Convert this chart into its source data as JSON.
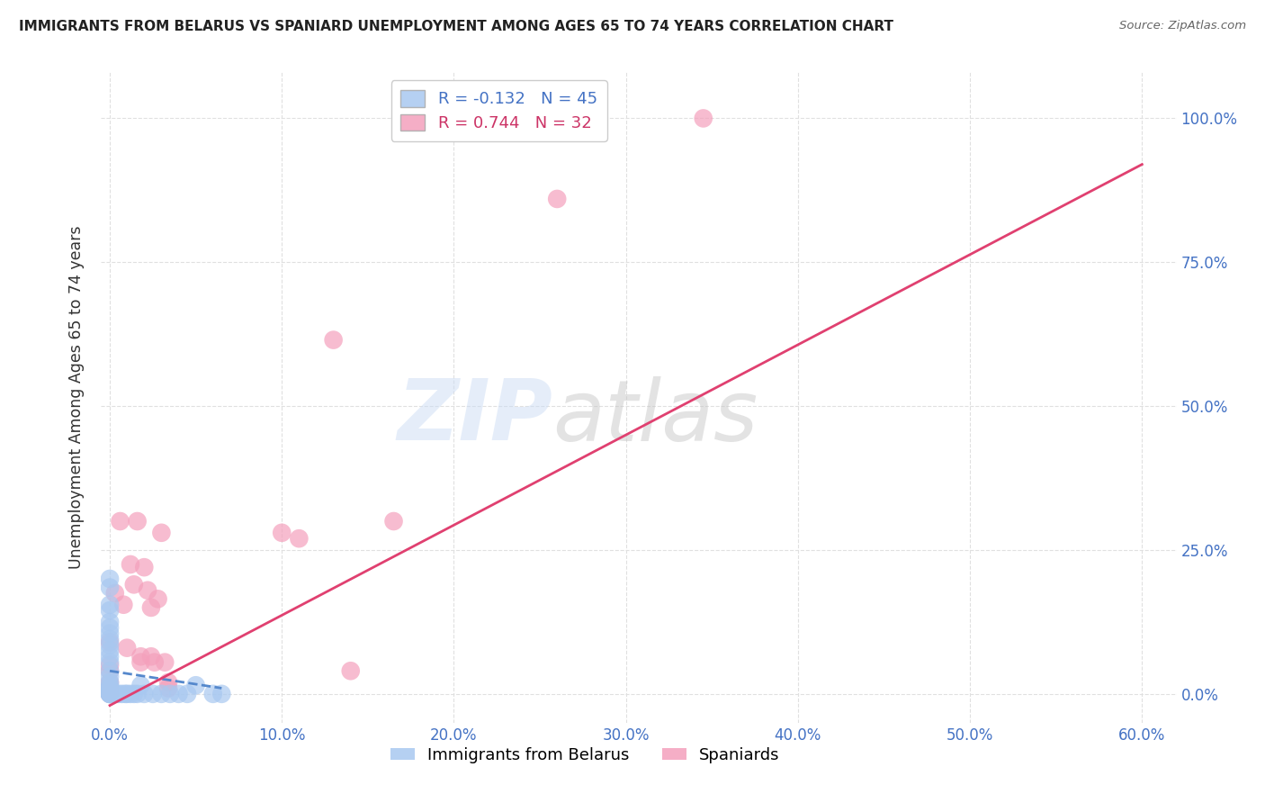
{
  "title": "IMMIGRANTS FROM BELARUS VS SPANIARD UNEMPLOYMENT AMONG AGES 65 TO 74 YEARS CORRELATION CHART",
  "source": "Source: ZipAtlas.com",
  "xlabel_ticks": [
    "0.0%",
    "10.0%",
    "20.0%",
    "30.0%",
    "40.0%",
    "50.0%",
    "60.0%"
  ],
  "xlabel_vals": [
    0.0,
    0.1,
    0.2,
    0.3,
    0.4,
    0.5,
    0.6
  ],
  "ylabel_ticks": [
    "0.0%",
    "25.0%",
    "50.0%",
    "75.0%",
    "100.0%"
  ],
  "ylabel_vals": [
    0.0,
    0.25,
    0.5,
    0.75,
    1.0
  ],
  "ylabel_label": "Unemployment Among Ages 65 to 74 years",
  "legend_blue_r": "-0.132",
  "legend_blue_n": "45",
  "legend_pink_r": "0.744",
  "legend_pink_n": "32",
  "legend_label_blue": "Immigrants from Belarus",
  "legend_label_pink": "Spaniards",
  "blue_color": "#a8c8f0",
  "pink_color": "#f4a0bc",
  "tick_color": "#4472c4",
  "blue_scatter": [
    [
      0.0,
      0.2
    ],
    [
      0.0,
      0.185
    ],
    [
      0.0,
      0.155
    ],
    [
      0.0,
      0.145
    ],
    [
      0.0,
      0.125
    ],
    [
      0.0,
      0.115
    ],
    [
      0.0,
      0.105
    ],
    [
      0.0,
      0.095
    ],
    [
      0.0,
      0.085
    ],
    [
      0.0,
      0.075
    ],
    [
      0.0,
      0.065
    ],
    [
      0.0,
      0.055
    ],
    [
      0.0,
      0.04
    ],
    [
      0.0,
      0.03
    ],
    [
      0.0,
      0.02
    ],
    [
      0.0,
      0.015
    ],
    [
      0.0,
      0.01
    ],
    [
      0.0,
      0.008
    ],
    [
      0.0,
      0.005
    ],
    [
      0.0,
      0.003
    ],
    [
      0.0,
      0.002
    ],
    [
      0.0,
      0.001
    ],
    [
      0.0,
      0.0
    ],
    [
      0.0,
      0.0
    ],
    [
      0.0,
      0.0
    ],
    [
      0.0,
      0.0
    ],
    [
      0.002,
      0.0
    ],
    [
      0.003,
      0.0
    ],
    [
      0.005,
      0.0
    ],
    [
      0.007,
      0.0
    ],
    [
      0.009,
      0.0
    ],
    [
      0.01,
      0.0
    ],
    [
      0.012,
      0.0
    ],
    [
      0.014,
      0.0
    ],
    [
      0.016,
      0.0
    ],
    [
      0.018,
      0.015
    ],
    [
      0.02,
      0.0
    ],
    [
      0.025,
      0.0
    ],
    [
      0.03,
      0.0
    ],
    [
      0.035,
      0.0
    ],
    [
      0.04,
      0.0
    ],
    [
      0.045,
      0.0
    ],
    [
      0.05,
      0.015
    ],
    [
      0.06,
      0.0
    ],
    [
      0.065,
      0.0
    ]
  ],
  "pink_scatter": [
    [
      0.0,
      0.09
    ],
    [
      0.0,
      0.05
    ],
    [
      0.0,
      0.04
    ],
    [
      0.0,
      0.02
    ],
    [
      0.0,
      0.01
    ],
    [
      0.0,
      0.0
    ],
    [
      0.003,
      0.175
    ],
    [
      0.006,
      0.3
    ],
    [
      0.008,
      0.155
    ],
    [
      0.01,
      0.08
    ],
    [
      0.012,
      0.225
    ],
    [
      0.014,
      0.19
    ],
    [
      0.016,
      0.3
    ],
    [
      0.018,
      0.065
    ],
    [
      0.018,
      0.055
    ],
    [
      0.02,
      0.22
    ],
    [
      0.022,
      0.18
    ],
    [
      0.024,
      0.15
    ],
    [
      0.024,
      0.065
    ],
    [
      0.026,
      0.055
    ],
    [
      0.028,
      0.165
    ],
    [
      0.03,
      0.28
    ],
    [
      0.032,
      0.055
    ],
    [
      0.034,
      0.02
    ],
    [
      0.034,
      0.01
    ],
    [
      0.1,
      0.28
    ],
    [
      0.11,
      0.27
    ],
    [
      0.13,
      0.615
    ],
    [
      0.14,
      0.04
    ],
    [
      0.165,
      0.3
    ],
    [
      0.26,
      0.86
    ],
    [
      0.345,
      1.0
    ]
  ],
  "blue_line": [
    [
      0.0,
      0.04
    ],
    [
      0.065,
      0.01
    ]
  ],
  "pink_line": [
    [
      0.0,
      -0.02
    ],
    [
      0.6,
      0.92
    ]
  ],
  "xlim": [
    -0.005,
    0.62
  ],
  "ylim": [
    -0.05,
    1.08
  ],
  "background": "#ffffff",
  "grid_color": "#e0e0e0"
}
